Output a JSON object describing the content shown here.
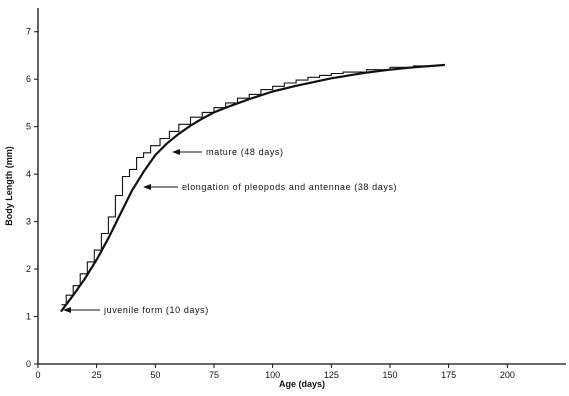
{
  "chart_data": {
    "type": "line",
    "title": "",
    "xlabel": "Age (days)",
    "ylabel": "Body Length (mm)",
    "xlim": [
      0,
      225
    ],
    "ylim": [
      0,
      7.5
    ],
    "xticks": [
      0,
      25,
      50,
      75,
      100,
      125,
      150,
      175,
      200
    ],
    "yticks": [
      0,
      1,
      2,
      3,
      4,
      5,
      6,
      7
    ],
    "grid": false,
    "series": [
      {
        "style": "step",
        "x": [
          10,
          12,
          15,
          18,
          21,
          24,
          27,
          30,
          33,
          36,
          39,
          42,
          45,
          48,
          52,
          56,
          60,
          65,
          70,
          75,
          80,
          85,
          90,
          95,
          100,
          105,
          110,
          115,
          120,
          125,
          130,
          140,
          150,
          160,
          170
        ],
        "y": [
          1.25,
          1.45,
          1.65,
          1.9,
          2.15,
          2.4,
          2.75,
          3.1,
          3.55,
          3.95,
          4.1,
          4.35,
          4.45,
          4.6,
          4.75,
          4.9,
          5.05,
          5.2,
          5.3,
          5.4,
          5.5,
          5.6,
          5.68,
          5.78,
          5.85,
          5.92,
          5.98,
          6.04,
          6.08,
          6.12,
          6.15,
          6.2,
          6.25,
          6.28,
          6.3
        ]
      },
      {
        "style": "smooth",
        "x": [
          10,
          15,
          20,
          25,
          30,
          35,
          40,
          45,
          50,
          55,
          60,
          65,
          70,
          75,
          80,
          90,
          100,
          110,
          125,
          140,
          150,
          160,
          173
        ],
        "y": [
          1.12,
          1.45,
          1.8,
          2.2,
          2.65,
          3.15,
          3.65,
          4.05,
          4.4,
          4.65,
          4.85,
          5.02,
          5.17,
          5.3,
          5.4,
          5.58,
          5.74,
          5.86,
          6.02,
          6.14,
          6.2,
          6.25,
          6.3
        ]
      }
    ],
    "annotations": [
      {
        "text": "mature (48 days)",
        "x": 55,
        "y": 4.6
      },
      {
        "text": "elongation of pleopods and antennae (38 days)",
        "x": 45,
        "y": 3.7
      },
      {
        "text": "juvenile form (10 days)",
        "x": 11,
        "y": 1.15
      }
    ]
  }
}
